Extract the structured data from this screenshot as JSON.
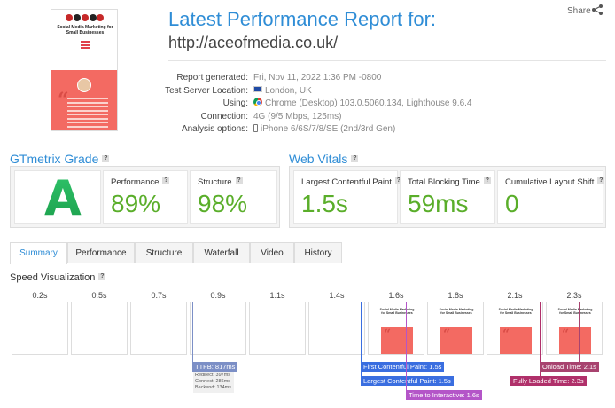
{
  "header": {
    "title": "Latest Performance Report for:",
    "url": "http://aceofmedia.co.uk/",
    "share_label": "Share"
  },
  "thumbnail": {
    "site_title": "Social Media Marketing for Small Businesses",
    "icon": "hamburger-menu-icon"
  },
  "report_info": {
    "labels": [
      "Report generated:",
      "Test Server Location:",
      "Using:",
      "Connection:",
      "Analysis options:"
    ],
    "generated": "Fri, Nov 11, 2022 1:36 PM -0800",
    "location": "London, UK",
    "using": "Chrome (Desktop) 103.0.5060.134, Lighthouse 9.6.4",
    "connection": "4G (9/5 Mbps, 125ms)",
    "analysis": "iPhone 6/6S/7/8/SE (2nd/3rd Gen)"
  },
  "grade": {
    "section_title": "GTmetrix Grade",
    "letter": "A",
    "performance_label": "Performance",
    "performance_value": "89%",
    "structure_label": "Structure",
    "structure_value": "98%"
  },
  "web_vitals": {
    "section_title": "Web Vitals",
    "lcp_label": "Largest Contentful Paint",
    "lcp_value": "1.5s",
    "tbt_label": "Total Blocking Time",
    "tbt_value": "59ms",
    "cls_label": "Cumulative Layout Shift",
    "cls_value": "0"
  },
  "tabs": [
    "Summary",
    "Performance",
    "Structure",
    "Waterfall",
    "Video",
    "History"
  ],
  "active_tab": "Summary",
  "speed_visualization": {
    "title": "Speed Visualization",
    "times": [
      "0.2s",
      "0.5s",
      "0.7s",
      "0.9s",
      "1.1s",
      "1.4s",
      "1.6s",
      "1.8s",
      "2.1s",
      "2.3s"
    ],
    "ttfb": "TTFB: 817ms",
    "ttfb_details": [
      "Redirect: 397ms",
      "Connect: 286ms",
      "Backend: 134ms"
    ],
    "fcp": "First Contentful Paint: 1.5s",
    "lcp": "Largest Contentful Paint: 1.5s",
    "tti": "Time to Interactive: 1.6s",
    "onload": "Onload Time: 2.1s",
    "fully_loaded": "Fully Loaded Time: 2.3s"
  },
  "colors": {
    "accent": "#2f8dd6",
    "grade_green": "#2fc46a",
    "metric_green": "#5aae2a",
    "ttfb": "#7c8fc6",
    "fcp": "#3a6ee0",
    "tti": "#b455c8",
    "onload": "#a8436f",
    "fully_loaded": "#b0306a"
  }
}
